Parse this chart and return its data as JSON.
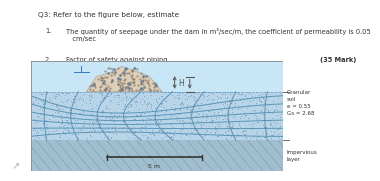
{
  "title_text": "Q3: Refer to the figure below, estimate",
  "item1_num": "1.",
  "item1_body": "The quantity of seepage under the dam in m³/sec/m, the coefficient of permeability is 0.05\n   cm/sec",
  "item2_num": "2.",
  "item2_body": "Factor of safety against piping.",
  "marks": "(35 Mark)",
  "label_granular": "Granular\nsoil\ne = 0.55\nGs = 2.68",
  "label_impervious": "Impervious\nlayer",
  "scale_label": "5 m",
  "H_label": "H",
  "bg_color": "#ffffff",
  "fig_bg_color": "#c8e6f5",
  "upstream_water_color": "#c8e6f5",
  "soil_color": "#b8d4e8",
  "impervious_color": "#a0bece",
  "dam_color": "#e8d8c0",
  "flownet_color": "#4a8ab0",
  "text_color": "#333333",
  "dim_color": "#555555"
}
